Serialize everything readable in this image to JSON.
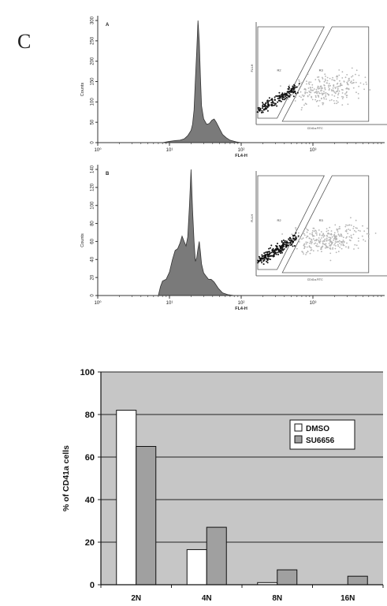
{
  "panel_letter": "C",
  "chart_data": [
    {
      "type": "histogram",
      "panel_label": "A",
      "ylabel": "Counts",
      "xlabel": "FL4-H",
      "x_scale": "log",
      "xlim": [
        1,
        10000
      ],
      "ylim": [
        0,
        300
      ],
      "x_ticks": [
        "10⁰",
        "10¹",
        "10²",
        "10³"
      ],
      "y_ticks": [
        "0",
        "50",
        "100",
        "150",
        "200",
        "250",
        "300"
      ],
      "color": "#7a7a7a",
      "profile": [
        [
          8,
          0
        ],
        [
          10,
          3
        ],
        [
          12,
          5
        ],
        [
          14,
          6
        ],
        [
          16,
          9
        ],
        [
          18,
          17
        ],
        [
          20,
          30
        ],
        [
          21,
          45
        ],
        [
          22,
          80
        ],
        [
          23,
          155
        ],
        [
          24,
          225
        ],
        [
          25,
          300
        ],
        [
          26,
          250
        ],
        [
          27,
          160
        ],
        [
          28,
          90
        ],
        [
          30,
          58
        ],
        [
          33,
          45
        ],
        [
          36,
          47
        ],
        [
          39,
          55
        ],
        [
          42,
          58
        ],
        [
          45,
          50
        ],
        [
          50,
          34
        ],
        [
          55,
          20
        ],
        [
          62,
          12
        ],
        [
          70,
          6
        ],
        [
          85,
          2
        ],
        [
          100,
          0
        ]
      ],
      "inset": {
        "xlabel": "CD41a-FITC",
        "ylabel": "FL4-H",
        "gates": [
          "R2",
          "R3"
        ],
        "populations": [
          {
            "gate": "R2",
            "color": "#111111"
          },
          {
            "gate": "R3",
            "color": "#b5b5b5"
          }
        ]
      }
    },
    {
      "type": "histogram",
      "panel_label": "B",
      "ylabel": "Counts",
      "xlabel": "FL4-H",
      "x_scale": "log",
      "xlim": [
        1,
        10000
      ],
      "ylim": [
        0,
        140
      ],
      "x_ticks": [
        "10⁰",
        "10¹",
        "10²",
        "10³"
      ],
      "y_ticks": [
        "0",
        "20",
        "40",
        "60",
        "80",
        "100",
        "120",
        "140"
      ],
      "color": "#7a7a7a",
      "profile": [
        [
          7,
          0
        ],
        [
          7.5,
          10
        ],
        [
          8,
          16
        ],
        [
          9,
          18
        ],
        [
          10,
          26
        ],
        [
          11,
          40
        ],
        [
          12,
          50
        ],
        [
          13,
          52
        ],
        [
          14,
          58
        ],
        [
          15,
          66
        ],
        [
          16,
          60
        ],
        [
          17,
          55
        ],
        [
          18,
          65
        ],
        [
          19,
          100
        ],
        [
          20,
          140
        ],
        [
          21,
          95
        ],
        [
          22,
          60
        ],
        [
          23,
          38
        ],
        [
          24,
          42
        ],
        [
          25,
          52
        ],
        [
          26,
          60
        ],
        [
          27,
          48
        ],
        [
          28,
          35
        ],
        [
          30,
          25
        ],
        [
          32,
          22
        ],
        [
          35,
          18
        ],
        [
          38,
          18
        ],
        [
          42,
          15
        ],
        [
          48,
          8
        ],
        [
          55,
          3
        ],
        [
          65,
          1
        ],
        [
          80,
          0
        ]
      ],
      "inset": {
        "xlabel": "CD41a-FITC",
        "ylabel": "FL4-H",
        "gates": [
          "R2",
          "R3"
        ],
        "populations": [
          {
            "gate": "R2",
            "color": "#111111"
          },
          {
            "gate": "R3",
            "color": "#b5b5b5"
          }
        ]
      }
    },
    {
      "type": "bar",
      "categories": [
        "2N",
        "4N",
        "8N",
        "16N"
      ],
      "series": [
        {
          "name": "DMSO",
          "values": [
            82,
            16.5,
            1,
            0
          ],
          "color": "#ffffff"
        },
        {
          "name": "SU6656",
          "values": [
            65,
            27,
            7,
            4
          ],
          "color": "#a0a0a0"
        }
      ],
      "ylabel": "% of CD41a cells",
      "ylim": [
        0,
        100
      ],
      "y_ticks": [
        0,
        20,
        40,
        60,
        80,
        100
      ],
      "grid": true,
      "plot_background": "#c6c6c6",
      "legend_position": "right"
    }
  ]
}
